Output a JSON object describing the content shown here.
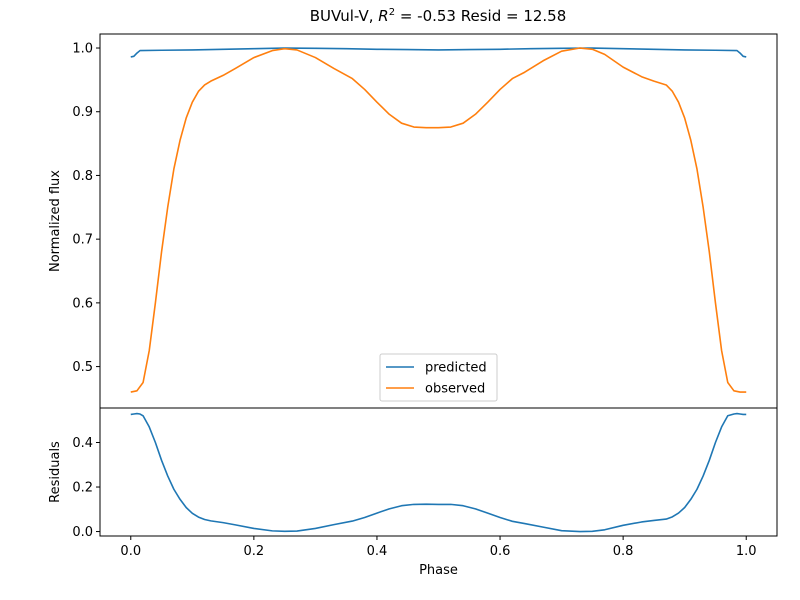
{
  "figure": {
    "title_prefix": "BUVul-V, ",
    "title_r": "R",
    "title_sup": "2",
    "title_suffix": " = -0.53 Resid = 12.58"
  },
  "colors": {
    "predicted": "#1f77b4",
    "observed": "#ff7f0e",
    "residual": "#1f77b4",
    "legend_border": "#cccccc"
  },
  "chart_data": [
    {
      "type": "line",
      "panel": "top",
      "title": "BUVul-V, R^2 = -0.53 Resid = 12.58",
      "xlabel": "",
      "ylabel": "Normalized flux",
      "xlim": [
        -0.05,
        1.05
      ],
      "ylim": [
        0.435,
        1.022
      ],
      "yticks": [
        0.5,
        0.6,
        0.7,
        0.8,
        0.9,
        1.0
      ],
      "ytick_labels": [
        "0.5",
        "0.6",
        "0.7",
        "0.8",
        "0.9",
        "1.0"
      ],
      "legend": "lower-center",
      "grid": false,
      "series": [
        {
          "name": "predicted",
          "x": [
            0.0,
            0.005,
            0.01,
            0.015,
            0.05,
            0.1,
            0.15,
            0.2,
            0.25,
            0.3,
            0.35,
            0.4,
            0.45,
            0.5,
            0.55,
            0.6,
            0.65,
            0.7,
            0.75,
            0.8,
            0.85,
            0.9,
            0.95,
            0.985,
            0.99,
            0.995,
            1.0
          ],
          "y": [
            0.986,
            0.987,
            0.992,
            0.996,
            0.9965,
            0.997,
            0.998,
            0.999,
            1.0,
            0.9995,
            0.999,
            0.998,
            0.9975,
            0.997,
            0.9975,
            0.998,
            0.999,
            0.9995,
            1.0,
            0.999,
            0.998,
            0.997,
            0.9965,
            0.996,
            0.992,
            0.987,
            0.986
          ]
        },
        {
          "name": "observed",
          "x": [
            0.0,
            0.01,
            0.02,
            0.03,
            0.04,
            0.05,
            0.06,
            0.07,
            0.08,
            0.09,
            0.1,
            0.11,
            0.12,
            0.13,
            0.15,
            0.17,
            0.2,
            0.23,
            0.25,
            0.27,
            0.3,
            0.33,
            0.36,
            0.38,
            0.4,
            0.42,
            0.44,
            0.46,
            0.48,
            0.5,
            0.52,
            0.54,
            0.56,
            0.58,
            0.6,
            0.62,
            0.64,
            0.67,
            0.7,
            0.73,
            0.75,
            0.77,
            0.8,
            0.83,
            0.85,
            0.87,
            0.88,
            0.89,
            0.9,
            0.91,
            0.92,
            0.93,
            0.94,
            0.95,
            0.96,
            0.97,
            0.98,
            0.99,
            1.0
          ],
          "y": [
            0.46,
            0.462,
            0.475,
            0.525,
            0.6,
            0.68,
            0.75,
            0.81,
            0.855,
            0.89,
            0.915,
            0.932,
            0.942,
            0.948,
            0.957,
            0.968,
            0.985,
            0.996,
            0.999,
            0.997,
            0.985,
            0.968,
            0.952,
            0.935,
            0.915,
            0.896,
            0.882,
            0.876,
            0.875,
            0.875,
            0.876,
            0.882,
            0.896,
            0.915,
            0.935,
            0.952,
            0.962,
            0.98,
            0.995,
            1.0,
            0.998,
            0.99,
            0.97,
            0.955,
            0.948,
            0.942,
            0.932,
            0.915,
            0.89,
            0.855,
            0.81,
            0.75,
            0.68,
            0.6,
            0.525,
            0.475,
            0.462,
            0.46,
            0.46
          ]
        }
      ]
    },
    {
      "type": "line",
      "panel": "bottom",
      "xlabel": "Phase",
      "ylabel": "Residuals",
      "xlim": [
        -0.05,
        1.05
      ],
      "ylim": [
        -0.02,
        0.555
      ],
      "xticks": [
        0.0,
        0.2,
        0.4,
        0.6,
        0.8,
        1.0
      ],
      "xtick_labels": [
        "0.0",
        "0.2",
        "0.4",
        "0.6",
        "0.8",
        "1.0"
      ],
      "yticks": [
        0.0,
        0.2,
        0.4
      ],
      "ytick_labels": [
        "0.0",
        "0.2",
        "0.4"
      ],
      "grid": false,
      "series": [
        {
          "x": [
            0.0,
            0.005,
            0.01,
            0.015,
            0.02,
            0.03,
            0.04,
            0.05,
            0.06,
            0.07,
            0.08,
            0.09,
            0.1,
            0.11,
            0.12,
            0.13,
            0.15,
            0.17,
            0.2,
            0.23,
            0.25,
            0.27,
            0.3,
            0.33,
            0.36,
            0.38,
            0.4,
            0.42,
            0.44,
            0.46,
            0.48,
            0.5,
            0.52,
            0.54,
            0.56,
            0.58,
            0.6,
            0.62,
            0.64,
            0.67,
            0.7,
            0.73,
            0.75,
            0.77,
            0.8,
            0.83,
            0.85,
            0.87,
            0.88,
            0.89,
            0.9,
            0.91,
            0.92,
            0.93,
            0.94,
            0.95,
            0.96,
            0.97,
            0.98,
            0.985,
            0.99,
            0.995,
            1.0
          ],
          "y": [
            0.526,
            0.528,
            0.53,
            0.528,
            0.52,
            0.47,
            0.4,
            0.32,
            0.25,
            0.19,
            0.145,
            0.108,
            0.082,
            0.065,
            0.054,
            0.048,
            0.04,
            0.03,
            0.014,
            0.003,
            0.001,
            0.002,
            0.014,
            0.031,
            0.047,
            0.063,
            0.083,
            0.102,
            0.116,
            0.122,
            0.123,
            0.122,
            0.122,
            0.116,
            0.102,
            0.083,
            0.063,
            0.046,
            0.036,
            0.02,
            0.004,
            0.0,
            0.001,
            0.008,
            0.028,
            0.043,
            0.05,
            0.056,
            0.066,
            0.083,
            0.108,
            0.145,
            0.19,
            0.25,
            0.32,
            0.4,
            0.47,
            0.52,
            0.528,
            0.53,
            0.528,
            0.526,
            0.526
          ]
        }
      ]
    }
  ]
}
